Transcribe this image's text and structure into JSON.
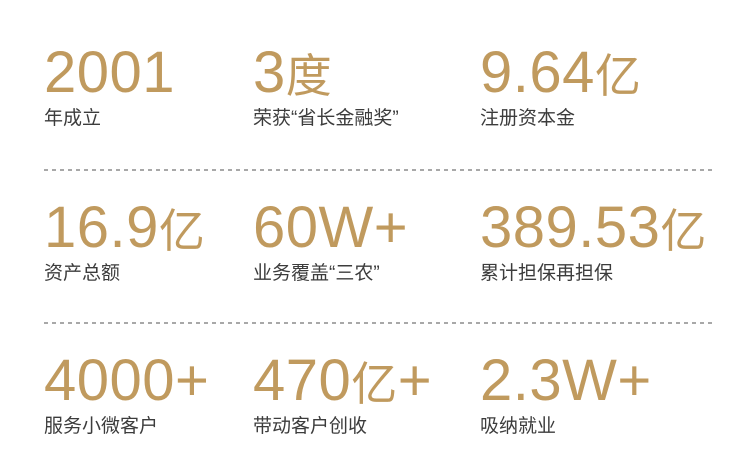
{
  "page": {
    "background": "#ffffff"
  },
  "colors": {
    "accent_gold": "#C09A5E",
    "label_text": "#3C3C3C",
    "divider_gray": "#A8A8A8"
  },
  "stats": [
    {
      "value": "2001",
      "unit": "",
      "suffix": "",
      "label": "年成立"
    },
    {
      "value": "3",
      "unit": "度",
      "suffix": "",
      "label": "荣获“省长金融奖”"
    },
    {
      "value": "9.64",
      "unit": "亿",
      "suffix": "",
      "label": "注册资本金"
    },
    {
      "value": "16.9",
      "unit": "亿",
      "suffix": "",
      "label": "资产总额"
    },
    {
      "value": "60W",
      "unit": "",
      "suffix": "+",
      "label": "业务覆盖“三农”"
    },
    {
      "value": "389.53",
      "unit": "亿",
      "suffix": "",
      "label": "累计担保再担保"
    },
    {
      "value": "4000",
      "unit": "",
      "suffix": "+",
      "label": "服务小微客户"
    },
    {
      "value": "470",
      "unit": "亿",
      "suffix": "+",
      "label": "带动客户创收"
    },
    {
      "value": "2.3W",
      "unit": "",
      "suffix": "+",
      "label": "吸纳就业"
    }
  ]
}
